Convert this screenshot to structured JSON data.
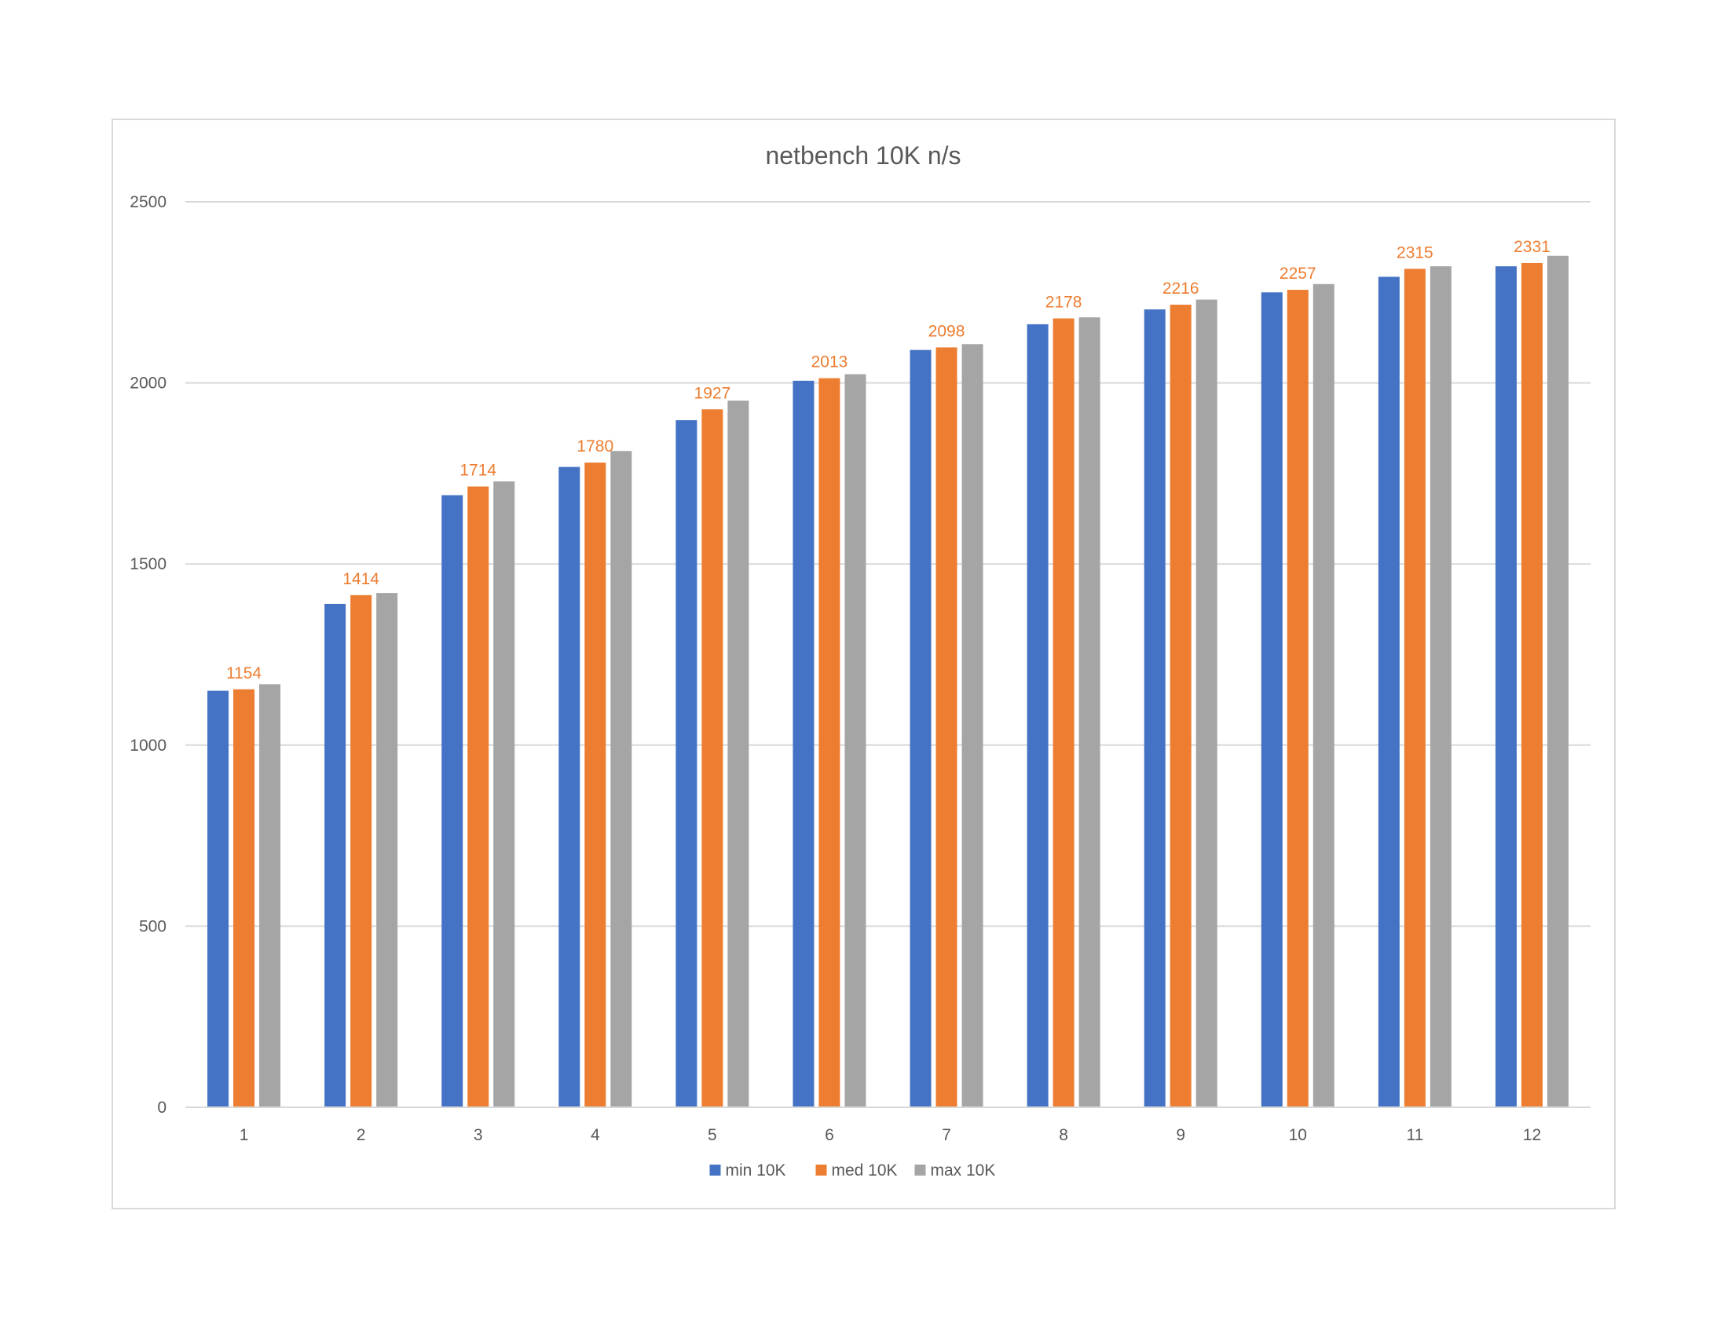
{
  "chart_data": {
    "type": "bar",
    "title": "netbench 10K n/s",
    "xlabel": "",
    "ylabel": "",
    "categories": [
      "1",
      "2",
      "3",
      "4",
      "5",
      "6",
      "7",
      "8",
      "9",
      "10",
      "11",
      "12"
    ],
    "series": [
      {
        "name": "min 10K",
        "color": "#4472c4",
        "values": [
          1150,
          1390,
          1690,
          1768,
          1897,
          2006,
          2091,
          2162,
          2203,
          2250,
          2293,
          2322
        ]
      },
      {
        "name": "med 10K",
        "color": "#ed7d31",
        "values": [
          1154,
          1414,
          1714,
          1780,
          1927,
          2013,
          2098,
          2178,
          2216,
          2257,
          2315,
          2331
        ],
        "show_data_labels": true
      },
      {
        "name": "max 10K",
        "color": "#a5a5a5",
        "values": [
          1168,
          1420,
          1728,
          1812,
          1951,
          2024,
          2107,
          2181,
          2230,
          2273,
          2322,
          2351
        ]
      }
    ],
    "ylim": [
      0,
      2500
    ],
    "yticks": [
      0,
      500,
      1000,
      1500,
      2000,
      2500
    ],
    "grid": true,
    "legend": "bottom-center"
  }
}
